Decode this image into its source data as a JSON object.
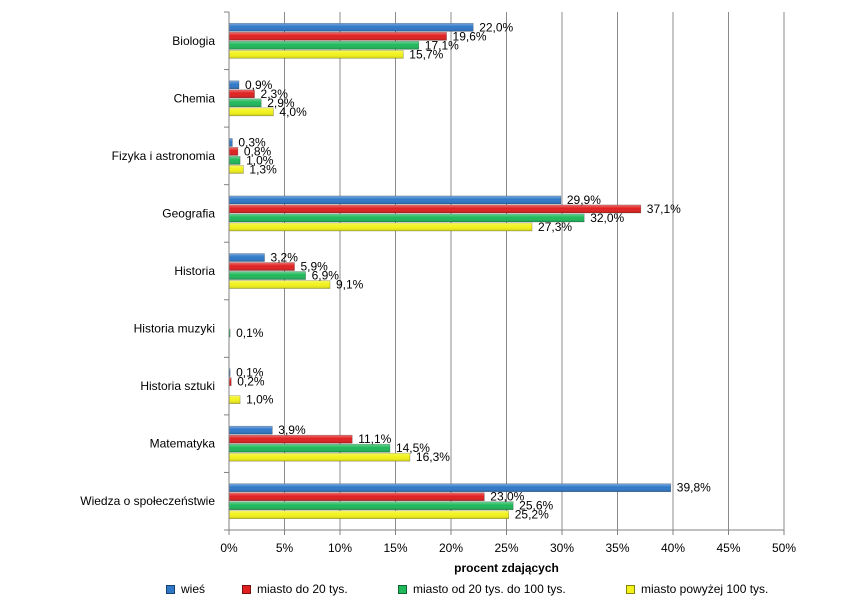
{
  "chart_data": {
    "type": "bar",
    "orientation": "horizontal",
    "categories": [
      "Biologia",
      "Chemia",
      "Fizyka i astronomia",
      "Geografia",
      "Historia",
      "Historia muzyki",
      "Historia sztuki",
      "Matematyka",
      "Wiedza o społeczeństwie"
    ],
    "series": [
      {
        "name": "wieś",
        "color": "#2f78c8",
        "values": [
          22.0,
          0.9,
          0.3,
          29.9,
          3.2,
          null,
          0.1,
          3.9,
          39.8
        ],
        "labels": [
          "22,0%",
          "0,9%",
          "0,3%",
          "29,9%",
          "3,2%",
          "",
          "0,1%",
          "3,9%",
          "39,8%"
        ]
      },
      {
        "name": "miasto do 20 tys.",
        "color": "#e02020",
        "values": [
          19.6,
          2.3,
          0.8,
          37.1,
          5.9,
          null,
          0.2,
          11.1,
          23.0
        ],
        "labels": [
          "19,6%",
          "2,3%",
          "0,8%",
          "37,1%",
          "5,9%",
          "",
          "0,2%",
          "11,1%",
          "23,0%"
        ]
      },
      {
        "name": "miasto od 20 tys. do 100 tys.",
        "color": "#1fb85a",
        "values": [
          17.1,
          2.9,
          1.0,
          32.0,
          6.9,
          0.1,
          null,
          14.5,
          25.6
        ],
        "labels": [
          "17,1%",
          "2,9%",
          "1,0%",
          "32,0%",
          "6,9%",
          "0,1%",
          "",
          "14,5%",
          "25,6%"
        ]
      },
      {
        "name": "miasto powyżej 100 tys.",
        "color": "#f2f21a",
        "values": [
          15.7,
          4.0,
          1.3,
          27.3,
          9.1,
          null,
          1.0,
          16.3,
          25.2
        ],
        "labels": [
          "15,7%",
          "4,0%",
          "1,3%",
          "27,3%",
          "9,1%",
          "",
          "1,0%",
          "16,3%",
          "25,2%"
        ]
      }
    ],
    "xlabel": "procent zdających",
    "xlim": [
      0,
      50
    ],
    "xticks": [
      0,
      5,
      10,
      15,
      20,
      25,
      30,
      35,
      40,
      45,
      50
    ],
    "xtick_labels": [
      "0%",
      "5%",
      "10%",
      "15%",
      "20%",
      "25%",
      "30%",
      "35%",
      "40%",
      "45%",
      "50%"
    ],
    "grid": true,
    "legend": "bottom"
  }
}
